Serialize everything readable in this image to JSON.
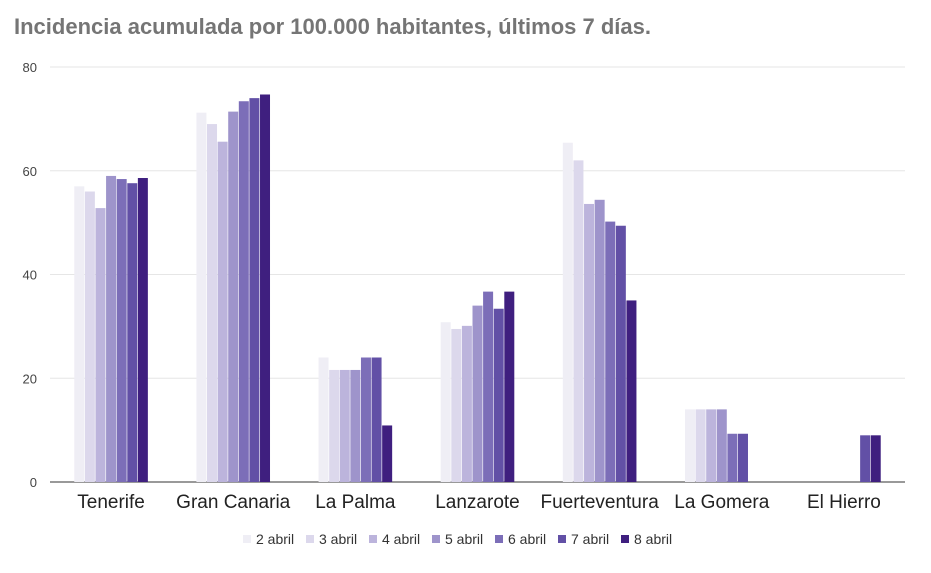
{
  "chart_data": {
    "type": "bar",
    "title": "Incidencia acumulada por 100.000 habitantes, últimos 7 días.",
    "xlabel": "",
    "ylabel": "",
    "ylim": [
      0,
      80
    ],
    "yticks": [
      0,
      20,
      40,
      60,
      80
    ],
    "grid": true,
    "legend_position": "bottom",
    "categories": [
      "Tenerife",
      "Gran Canaria",
      "La Palma",
      "Lanzarote",
      "Fuerteventura",
      "La Gomera",
      "El Hierro"
    ],
    "series": [
      {
        "name": "2 abril",
        "color": "#efeef5",
        "values": [
          57.0,
          71.2,
          24.0,
          30.8,
          65.4,
          14.0,
          0
        ]
      },
      {
        "name": "3 abril",
        "color": "#dcd8ec",
        "values": [
          56.0,
          69.0,
          21.6,
          29.5,
          62.0,
          14.0,
          0
        ]
      },
      {
        "name": "4 abril",
        "color": "#bcb4dc",
        "values": [
          52.8,
          65.6,
          21.6,
          30.1,
          53.6,
          14.0,
          0
        ]
      },
      {
        "name": "5 abril",
        "color": "#9e94cb",
        "values": [
          59.0,
          71.4,
          21.6,
          34.0,
          54.4,
          14.0,
          0
        ]
      },
      {
        "name": "6 abril",
        "color": "#7c6eb8",
        "values": [
          58.4,
          73.4,
          24.0,
          36.7,
          50.2,
          9.3,
          0
        ]
      },
      {
        "name": "7 abril",
        "color": "#6250a6",
        "values": [
          57.6,
          74.0,
          24.0,
          33.4,
          49.4,
          9.3,
          9.0
        ]
      },
      {
        "name": "8 abril",
        "color": "#3f1f7f",
        "values": [
          58.6,
          74.7,
          10.9,
          36.7,
          35.0,
          0,
          9.0
        ]
      }
    ]
  }
}
